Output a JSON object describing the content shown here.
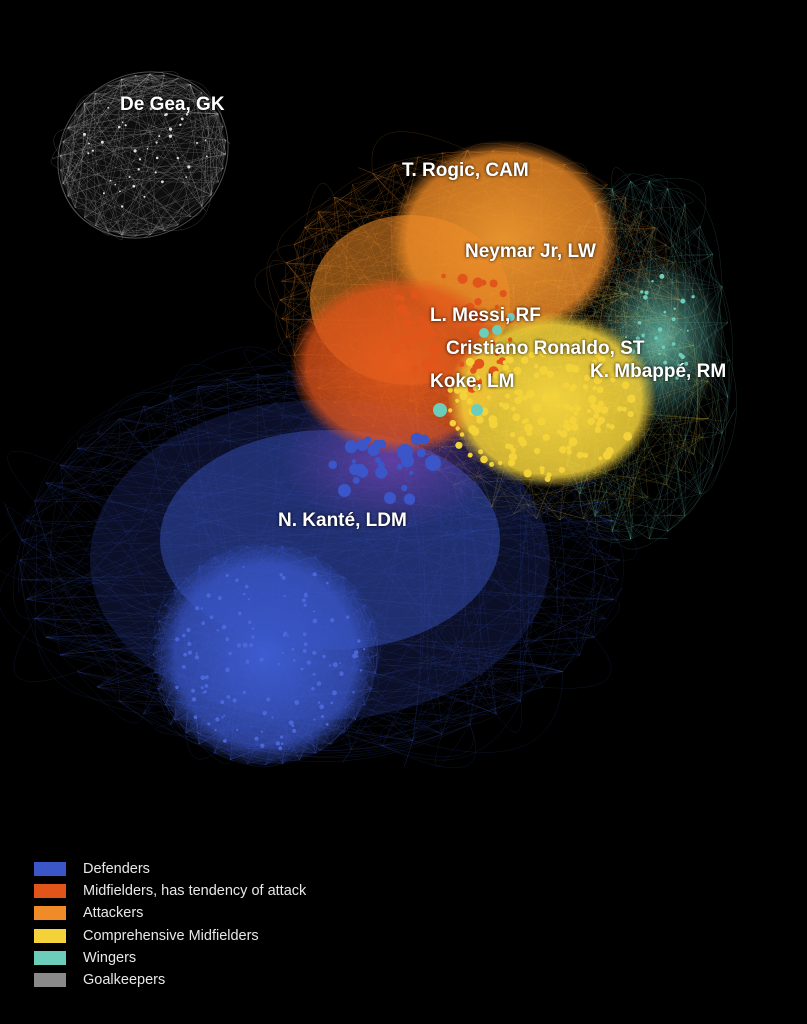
{
  "network": {
    "type": "player-similarity-network",
    "groups": [
      {
        "id": "def",
        "label": "Defenders",
        "color": "#3a56c8"
      },
      {
        "id": "midatk",
        "label": "Midfielders, has tendency of attack",
        "color": "#e2551a"
      },
      {
        "id": "atk",
        "label": "Attackers",
        "color": "#f08c28"
      },
      {
        "id": "cmid",
        "label": "Comprehensive Midfielders",
        "color": "#f4d23a"
      },
      {
        "id": "wing",
        "label": "Wingers",
        "color": "#6dcdbb"
      },
      {
        "id": "gk",
        "label": "Goalkeepers",
        "color": "#8a8a8a"
      }
    ],
    "labeled_players": [
      {
        "name": "De Gea, GK",
        "group": "gk"
      },
      {
        "name": "T. Rogic, CAM",
        "group": "atk"
      },
      {
        "name": "Neymar Jr, LW",
        "group": "atk"
      },
      {
        "name": "L. Messi, RF",
        "group": "midatk"
      },
      {
        "name": "Cristiano Ronaldo, ST",
        "group": "midatk"
      },
      {
        "name": "K. Mbappé, RM",
        "group": "wing"
      },
      {
        "name": "Koke, LM",
        "group": "cmid"
      },
      {
        "name": "N. Kanté, LDM",
        "group": "def"
      }
    ]
  }
}
